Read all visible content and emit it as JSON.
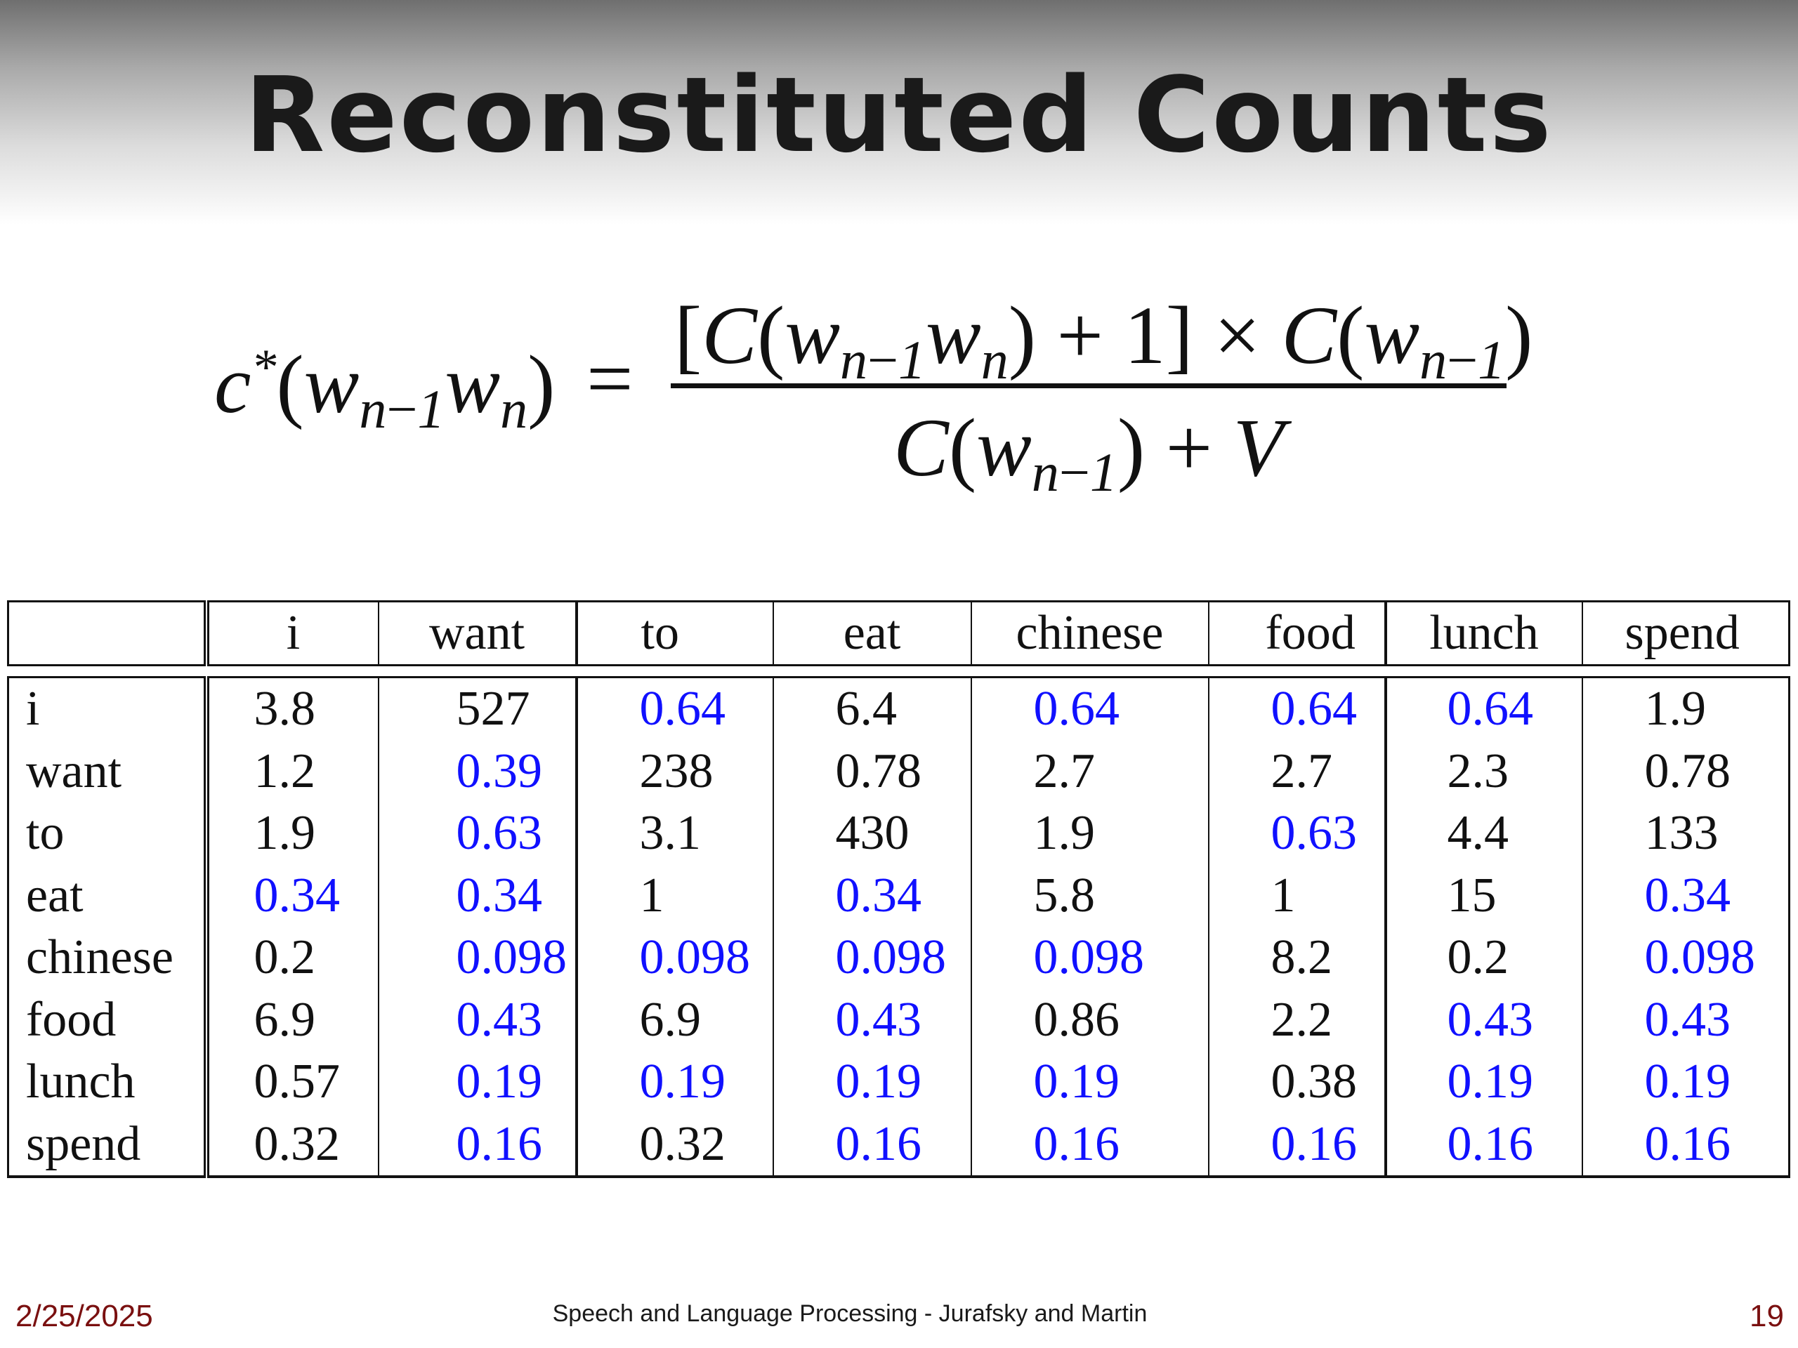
{
  "title": "Reconstituted Counts",
  "table": {
    "columns": [
      "i",
      "want",
      "to",
      "eat",
      "chinese",
      "food",
      "lunch",
      "spend"
    ],
    "rows": [
      {
        "label": "i",
        "cells": [
          {
            "v": "3.8",
            "blue": false
          },
          {
            "v": "527",
            "blue": false
          },
          {
            "v": "0.64",
            "blue": true
          },
          {
            "v": "6.4",
            "blue": false
          },
          {
            "v": "0.64",
            "blue": true
          },
          {
            "v": "0.64",
            "blue": true
          },
          {
            "v": "0.64",
            "blue": true
          },
          {
            "v": "1.9",
            "blue": false
          }
        ]
      },
      {
        "label": "want",
        "cells": [
          {
            "v": "1.2",
            "blue": false
          },
          {
            "v": "0.39",
            "blue": true
          },
          {
            "v": "238",
            "blue": false
          },
          {
            "v": "0.78",
            "blue": false
          },
          {
            "v": "2.7",
            "blue": false
          },
          {
            "v": "2.7",
            "blue": false
          },
          {
            "v": "2.3",
            "blue": false
          },
          {
            "v": "0.78",
            "blue": false
          }
        ]
      },
      {
        "label": "to",
        "cells": [
          {
            "v": "1.9",
            "blue": false
          },
          {
            "v": "0.63",
            "blue": true
          },
          {
            "v": "3.1",
            "blue": false
          },
          {
            "v": "430",
            "blue": false
          },
          {
            "v": "1.9",
            "blue": false
          },
          {
            "v": "0.63",
            "blue": true
          },
          {
            "v": "4.4",
            "blue": false
          },
          {
            "v": "133",
            "blue": false
          }
        ]
      },
      {
        "label": "eat",
        "cells": [
          {
            "v": "0.34",
            "blue": true
          },
          {
            "v": "0.34",
            "blue": true
          },
          {
            "v": "1",
            "blue": false
          },
          {
            "v": "0.34",
            "blue": true
          },
          {
            "v": "5.8",
            "blue": false
          },
          {
            "v": "1",
            "blue": false
          },
          {
            "v": "15",
            "blue": false
          },
          {
            "v": "0.34",
            "blue": true
          }
        ]
      },
      {
        "label": "chinese",
        "cells": [
          {
            "v": "0.2",
            "blue": false
          },
          {
            "v": "0.098",
            "blue": true
          },
          {
            "v": "0.098",
            "blue": true
          },
          {
            "v": "0.098",
            "blue": true
          },
          {
            "v": "0.098",
            "blue": true
          },
          {
            "v": "8.2",
            "blue": false
          },
          {
            "v": "0.2",
            "blue": false
          },
          {
            "v": "0.098",
            "blue": true
          }
        ]
      },
      {
        "label": "food",
        "cells": [
          {
            "v": "6.9",
            "blue": false
          },
          {
            "v": "0.43",
            "blue": true
          },
          {
            "v": "6.9",
            "blue": false
          },
          {
            "v": "0.43",
            "blue": true
          },
          {
            "v": "0.86",
            "blue": false
          },
          {
            "v": "2.2",
            "blue": false
          },
          {
            "v": "0.43",
            "blue": true
          },
          {
            "v": "0.43",
            "blue": true
          }
        ]
      },
      {
        "label": "lunch",
        "cells": [
          {
            "v": "0.57",
            "blue": false
          },
          {
            "v": "0.19",
            "blue": true
          },
          {
            "v": "0.19",
            "blue": true
          },
          {
            "v": "0.19",
            "blue": true
          },
          {
            "v": "0.19",
            "blue": true
          },
          {
            "v": "0.38",
            "blue": false
          },
          {
            "v": "0.19",
            "blue": true
          },
          {
            "v": "0.19",
            "blue": true
          }
        ]
      },
      {
        "label": "spend",
        "cells": [
          {
            "v": "0.32",
            "blue": false
          },
          {
            "v": "0.16",
            "blue": true
          },
          {
            "v": "0.32",
            "blue": false
          },
          {
            "v": "0.16",
            "blue": true
          },
          {
            "v": "0.16",
            "blue": true
          },
          {
            "v": "0.16",
            "blue": true
          },
          {
            "v": "0.16",
            "blue": true
          },
          {
            "v": "0.16",
            "blue": true
          }
        ]
      }
    ]
  },
  "colors": {
    "smoothed_value": "#1010ff",
    "observed_value": "#111111",
    "footer_accent": "#7a1010"
  },
  "footer": {
    "date": "2/25/2025",
    "credit": "Speech and Language Processing - Jurafsky and Martin",
    "page_number": "19"
  }
}
